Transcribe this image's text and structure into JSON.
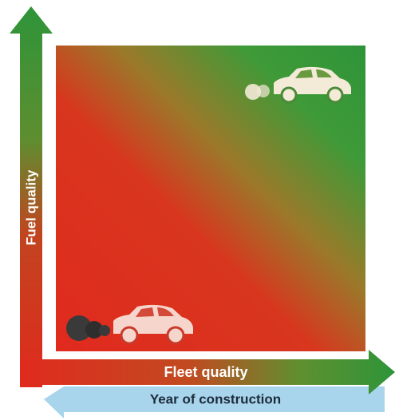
{
  "axes": {
    "vertical": "Fuel quality",
    "horizontal": "Fleet quality",
    "reverse": "Year of construction"
  }
}
